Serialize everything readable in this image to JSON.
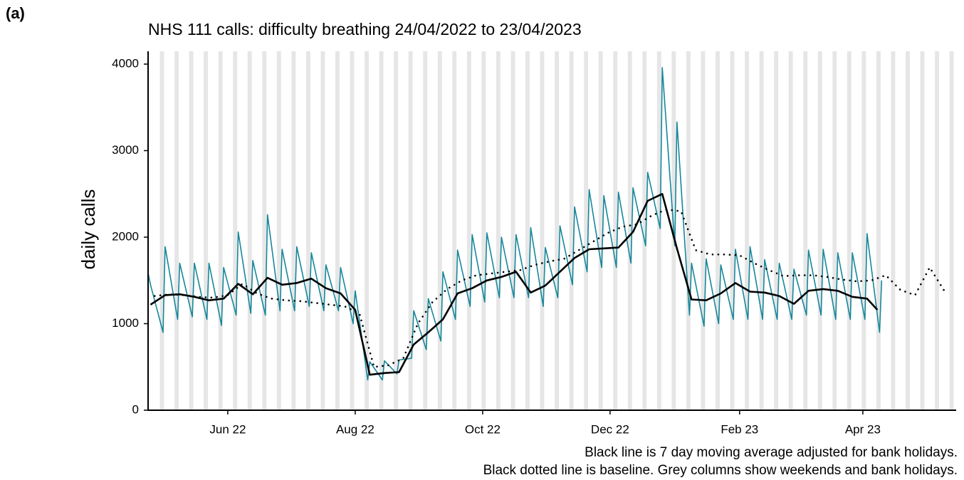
{
  "chart_data": {
    "type": "line",
    "panel_label": "(a)",
    "title": "NHS 111 calls: difficulty breathing 24/04/2022 to 23/04/2023",
    "y_label": "daily calls",
    "notes": [
      "Black line is 7 day moving average adjusted for bank holidays.",
      "Black dotted line is baseline. Grey columns show weekends and bank holidays."
    ],
    "xlim": [
      -1,
      386
    ],
    "ylim": [
      0,
      4000
    ],
    "yticks": [
      0,
      1000,
      2000,
      3000,
      4000
    ],
    "xticks": [
      {
        "value": 38,
        "label": "Jun 22"
      },
      {
        "value": 99,
        "label": "Aug 22"
      },
      {
        "value": 160,
        "label": "Oct 22"
      },
      {
        "value": 221,
        "label": "Dec 22"
      },
      {
        "value": 283,
        "label": "Feb 23"
      },
      {
        "value": 342,
        "label": "Apr 23"
      }
    ],
    "shade_color": "#e6e6e6",
    "shaded": [
      [
        5.5,
        7.5
      ],
      [
        12.5,
        14.5
      ],
      [
        19.5,
        21.5
      ],
      [
        26.5,
        28.5
      ],
      [
        33.5,
        35.5
      ],
      [
        40.5,
        42.5
      ],
      [
        47.5,
        49.5
      ],
      [
        54.5,
        56.5
      ],
      [
        61.5,
        63.5
      ],
      [
        68.5,
        70.5
      ],
      [
        75.5,
        77.5
      ],
      [
        82.5,
        84.5
      ],
      [
        89.5,
        91.5
      ],
      [
        96.5,
        98.5
      ],
      [
        103.5,
        105.5
      ],
      [
        110.5,
        112.5
      ],
      [
        117.5,
        119.5
      ],
      [
        124.5,
        126.5
      ],
      [
        131.5,
        133.5
      ],
      [
        138.5,
        140.5
      ],
      [
        145.5,
        147.5
      ],
      [
        152.5,
        154.5
      ],
      [
        159.5,
        161.5
      ],
      [
        166.5,
        168.5
      ],
      [
        173.5,
        175.5
      ],
      [
        180.5,
        182.5
      ],
      [
        187.5,
        189.5
      ],
      [
        194.5,
        196.5
      ],
      [
        201.5,
        203.5
      ],
      [
        208.5,
        210.5
      ],
      [
        215.5,
        217.5
      ],
      [
        222.5,
        224.5
      ],
      [
        229.5,
        231.5
      ],
      [
        236.5,
        238.5
      ],
      [
        243.5,
        245.5
      ],
      [
        250.5,
        252.5
      ],
      [
        257.5,
        259.5
      ],
      [
        264.5,
        266.5
      ],
      [
        271.5,
        273.5
      ],
      [
        278.5,
        280.5
      ],
      [
        285.5,
        287.5
      ],
      [
        292.5,
        294.5
      ],
      [
        299.5,
        301.5
      ],
      [
        306.5,
        308.5
      ],
      [
        313.5,
        315.5
      ],
      [
        320.5,
        322.5
      ],
      [
        327.5,
        329.5
      ],
      [
        334.5,
        336.5
      ],
      [
        341.5,
        343.5
      ],
      [
        348.5,
        350.5
      ],
      [
        355.5,
        357.5
      ],
      [
        362.5,
        364.5
      ],
      [
        369.5,
        371.5
      ],
      [
        376.5,
        378.5
      ],
      [
        383.5,
        385.5
      ]
    ],
    "series": [
      {
        "color": "#17879a",
        "style": "solid",
        "width": 1.6,
        "x": [
          0,
          1,
          7,
          8,
          14,
          15,
          21,
          22,
          28,
          29,
          35,
          36,
          42,
          43,
          49,
          50,
          56,
          57,
          63,
          64,
          70,
          71,
          77,
          78,
          84,
          85,
          91,
          92,
          98,
          99,
          105,
          106,
          112,
          113,
          119,
          120,
          126,
          127,
          133,
          134,
          140,
          141,
          147,
          148,
          154,
          155,
          161,
          162,
          168,
          169,
          175,
          176,
          182,
          183,
          189,
          190,
          196,
          197,
          203,
          204,
          210,
          211,
          217,
          218,
          224,
          225,
          231,
          232,
          238,
          239,
          245,
          246,
          252,
          253,
          259,
          260,
          266,
          267,
          273,
          274,
          280,
          281,
          287,
          288,
          294,
          295,
          301,
          302,
          308,
          309,
          315,
          316,
          322,
          323,
          329,
          330,
          336,
          337,
          343,
          344,
          350,
          351
        ],
        "values": [
          1570,
          1450,
          900,
          1890,
          1050,
          1700,
          1080,
          1700,
          1050,
          1700,
          980,
          1650,
          1100,
          2060,
          1120,
          1730,
          1100,
          2260,
          1150,
          1860,
          1150,
          1890,
          1200,
          1820,
          1150,
          1680,
          1150,
          1650,
          1000,
          1380,
          350,
          560,
          350,
          570,
          420,
          580,
          600,
          1150,
          700,
          1290,
          800,
          1600,
          1050,
          1850,
          1200,
          2030,
          1250,
          2050,
          1300,
          2000,
          1300,
          2030,
          1300,
          2110,
          1200,
          1880,
          1300,
          2130,
          1450,
          2350,
          1600,
          2550,
          1650,
          2480,
          1650,
          2520,
          1700,
          2570,
          1900,
          2750,
          2100,
          3960,
          1900,
          3330,
          1100,
          1700,
          970,
          1750,
          1000,
          1680,
          1050,
          1860,
          1050,
          1890,
          1050,
          1740,
          1050,
          1700,
          1050,
          1630,
          1100,
          1850,
          1100,
          1860,
          1050,
          1820,
          1050,
          1820,
          1050,
          2040,
          900,
          1500
        ]
      },
      {
        "color": "#000000",
        "style": "solid",
        "width": 2.6,
        "x": [
          1,
          8,
          15,
          22,
          29,
          36,
          43,
          50,
          57,
          64,
          71,
          78,
          85,
          92,
          99,
          106,
          113,
          120,
          127,
          134,
          141,
          148,
          155,
          162,
          169,
          176,
          183,
          190,
          197,
          204,
          211,
          218,
          225,
          232,
          239,
          246,
          253,
          260,
          267,
          274,
          281,
          288,
          295,
          302,
          309,
          316,
          323,
          330,
          337,
          344,
          349
        ],
        "values": [
          1220,
          1330,
          1340,
          1310,
          1270,
          1290,
          1460,
          1340,
          1530,
          1450,
          1470,
          1520,
          1410,
          1350,
          1160,
          410,
          430,
          440,
          760,
          900,
          1050,
          1350,
          1410,
          1500,
          1540,
          1600,
          1360,
          1440,
          1600,
          1760,
          1860,
          1870,
          1880,
          2060,
          2420,
          2500,
          1870,
          1280,
          1270,
          1350,
          1470,
          1370,
          1360,
          1320,
          1230,
          1380,
          1400,
          1380,
          1310,
          1290,
          1160
        ]
      },
      {
        "color": "#000000",
        "style": "dotted",
        "width": 2.6,
        "x": [
          3,
          10,
          17,
          24,
          31,
          38,
          45,
          52,
          59,
          66,
          73,
          80,
          87,
          94,
          101,
          108,
          115,
          122,
          129,
          136,
          143,
          150,
          157,
          164,
          171,
          178,
          185,
          192,
          199,
          206,
          213,
          220,
          227,
          234,
          241,
          248,
          255,
          262,
          269,
          276,
          283,
          290,
          297,
          304,
          311,
          318,
          325,
          332,
          339,
          346,
          353,
          360,
          367,
          374,
          381
        ],
        "values": [
          1320,
          1340,
          1330,
          1310,
          1300,
          1330,
          1460,
          1350,
          1290,
          1270,
          1260,
          1240,
          1220,
          1200,
          1120,
          500,
          520,
          600,
          1000,
          1250,
          1400,
          1500,
          1560,
          1580,
          1600,
          1620,
          1680,
          1720,
          1750,
          1850,
          1950,
          2050,
          2120,
          2150,
          2250,
          2320,
          2300,
          1850,
          1800,
          1800,
          1790,
          1700,
          1620,
          1550,
          1560,
          1560,
          1540,
          1510,
          1490,
          1500,
          1560,
          1390,
          1330,
          1650,
          1380
        ]
      }
    ]
  }
}
